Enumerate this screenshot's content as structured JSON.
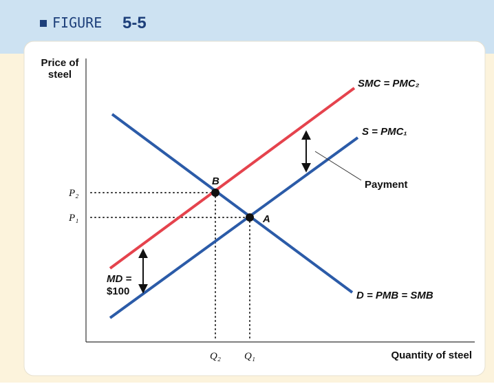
{
  "figure": {
    "label": "FIGURE",
    "number": "5-5"
  },
  "axes": {
    "y_label_line1": "Price of",
    "y_label_line2": "steel",
    "x_label": "Quantity of steel"
  },
  "curves": {
    "smc": "SMC = PMC₂",
    "s": "S = PMC₁",
    "d": "D = PMB = SMB"
  },
  "points": {
    "b": "B",
    "a": "A"
  },
  "prices": {
    "p2": "P₂",
    "p1": "P₁"
  },
  "quantities": {
    "q2": "Q₂",
    "q1": "Q₁"
  },
  "annotations": {
    "payment": "Payment",
    "md_line1": "MD =",
    "md_line2": "$100"
  }
}
